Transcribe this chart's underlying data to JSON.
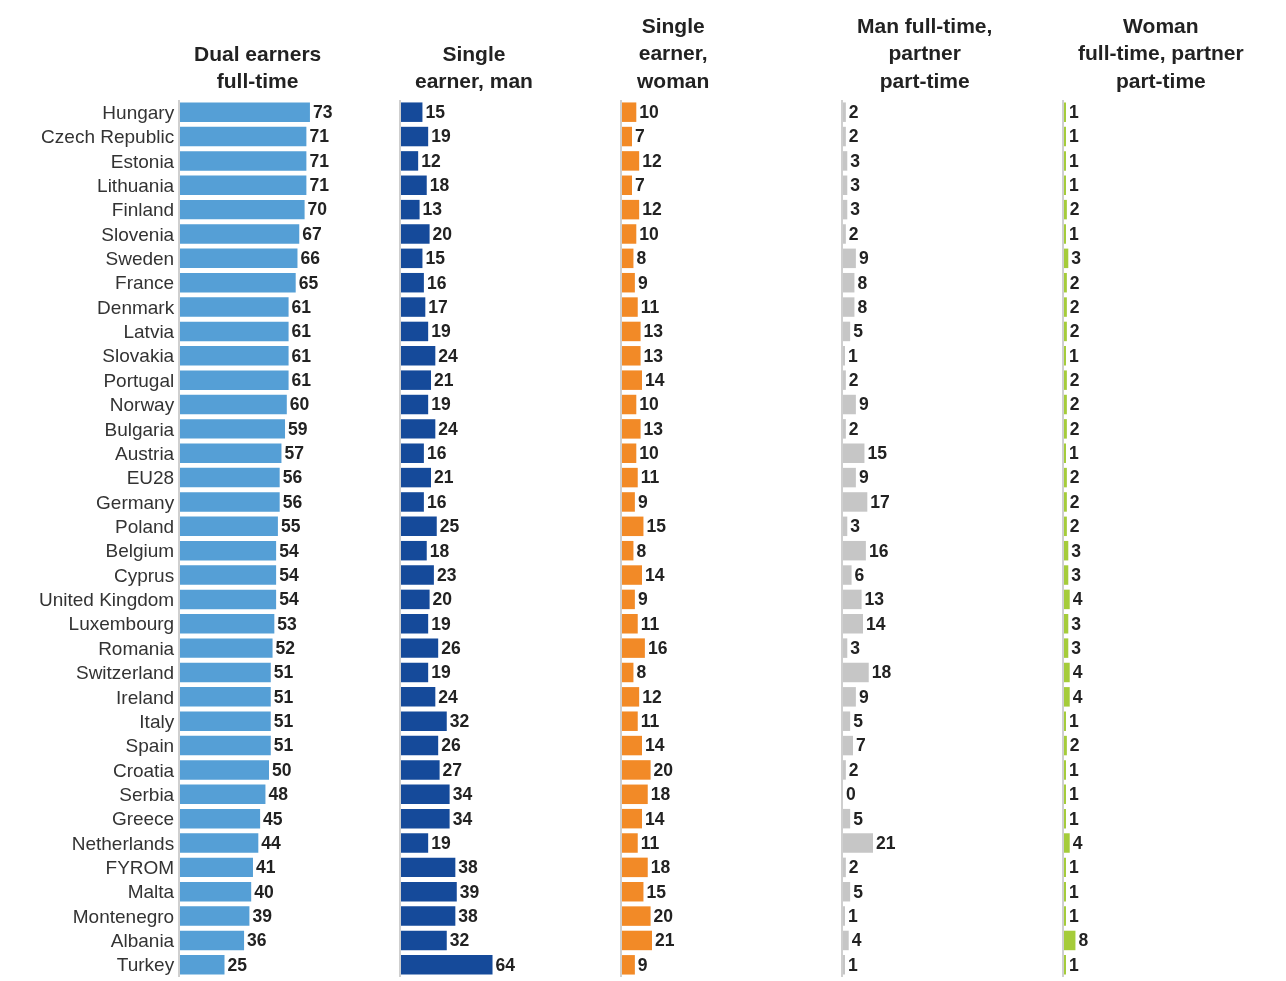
{
  "chart_data": [
    {
      "type": "bar",
      "orientation": "horizontal",
      "title": "Dual earners\nfull-time",
      "categories": [
        "Hungary",
        "Czech Republic",
        "Estonia",
        "Lithuania",
        "Finland",
        "Slovenia",
        "Sweden",
        "France",
        "Denmark",
        "Latvia",
        "Slovakia",
        "Portugal",
        "Norway",
        "Bulgaria",
        "Austria",
        "EU28",
        "Germany",
        "Poland",
        "Belgium",
        "Cyprus",
        "United Kingdom",
        "Luxembourg",
        "Romania",
        "Switzerland",
        "Ireland",
        "Italy",
        "Spain",
        "Croatia",
        "Serbia",
        "Greece",
        "Netherlands",
        "FYROM",
        "Malta",
        "Montenegro",
        "Albania",
        "Turkey"
      ],
      "values": [
        73,
        71,
        71,
        71,
        70,
        67,
        66,
        65,
        61,
        61,
        61,
        61,
        60,
        59,
        57,
        56,
        56,
        55,
        54,
        54,
        54,
        53,
        52,
        51,
        51,
        51,
        51,
        50,
        48,
        45,
        44,
        41,
        40,
        39,
        36,
        25
      ],
      "color": "#559fd6",
      "data_labels": true,
      "tick_labels": "y"
    },
    {
      "type": "bar",
      "orientation": "horizontal",
      "title": "Single\nearner, man",
      "categories": [
        "Hungary",
        "Czech Republic",
        "Estonia",
        "Lithuania",
        "Finland",
        "Slovenia",
        "Sweden",
        "France",
        "Denmark",
        "Latvia",
        "Slovakia",
        "Portugal",
        "Norway",
        "Bulgaria",
        "Austria",
        "EU28",
        "Germany",
        "Poland",
        "Belgium",
        "Cyprus",
        "United Kingdom",
        "Luxembourg",
        "Romania",
        "Switzerland",
        "Ireland",
        "Italy",
        "Spain",
        "Croatia",
        "Serbia",
        "Greece",
        "Netherlands",
        "FYROM",
        "Malta",
        "Montenegro",
        "Albania",
        "Turkey"
      ],
      "values": [
        15,
        19,
        12,
        18,
        13,
        20,
        15,
        16,
        17,
        19,
        24,
        21,
        19,
        24,
        16,
        21,
        16,
        25,
        18,
        23,
        20,
        19,
        26,
        19,
        24,
        32,
        26,
        27,
        34,
        34,
        19,
        38,
        39,
        38,
        32,
        64
      ],
      "color": "#154a9a",
      "data_labels": true,
      "tick_labels": false
    },
    {
      "type": "bar",
      "orientation": "horizontal",
      "title": "Single\nearner,\nwoman",
      "categories": [
        "Hungary",
        "Czech Republic",
        "Estonia",
        "Lithuania",
        "Finland",
        "Slovenia",
        "Sweden",
        "France",
        "Denmark",
        "Latvia",
        "Slovakia",
        "Portugal",
        "Norway",
        "Bulgaria",
        "Austria",
        "EU28",
        "Germany",
        "Poland",
        "Belgium",
        "Cyprus",
        "United Kingdom",
        "Luxembourg",
        "Romania",
        "Switzerland",
        "Ireland",
        "Italy",
        "Spain",
        "Croatia",
        "Serbia",
        "Greece",
        "Netherlands",
        "FYROM",
        "Malta",
        "Montenegro",
        "Albania",
        "Turkey"
      ],
      "values": [
        10,
        7,
        12,
        7,
        12,
        10,
        8,
        9,
        11,
        13,
        13,
        14,
        10,
        13,
        10,
        11,
        9,
        15,
        8,
        14,
        9,
        11,
        16,
        8,
        12,
        11,
        14,
        20,
        18,
        14,
        11,
        18,
        15,
        20,
        21,
        9
      ],
      "color": "#f28a27",
      "data_labels": true,
      "tick_labels": false
    },
    {
      "type": "bar",
      "orientation": "horizontal",
      "title": "Man full-time,\npartner\npart-time",
      "categories": [
        "Hungary",
        "Czech Republic",
        "Estonia",
        "Lithuania",
        "Finland",
        "Slovenia",
        "Sweden",
        "France",
        "Denmark",
        "Latvia",
        "Slovakia",
        "Portugal",
        "Norway",
        "Bulgaria",
        "Austria",
        "EU28",
        "Germany",
        "Poland",
        "Belgium",
        "Cyprus",
        "United Kingdom",
        "Luxembourg",
        "Romania",
        "Switzerland",
        "Ireland",
        "Italy",
        "Spain",
        "Croatia",
        "Serbia",
        "Greece",
        "Netherlands",
        "FYROM",
        "Malta",
        "Montenegro",
        "Albania",
        "Turkey"
      ],
      "values": [
        2,
        2,
        3,
        3,
        3,
        2,
        9,
        8,
        8,
        5,
        1,
        2,
        9,
        2,
        15,
        9,
        17,
        3,
        16,
        6,
        13,
        14,
        3,
        18,
        9,
        5,
        7,
        2,
        0,
        5,
        21,
        2,
        5,
        1,
        4,
        1
      ],
      "color": "#c6c6c6",
      "data_labels": true,
      "tick_labels": false
    },
    {
      "type": "bar",
      "orientation": "horizontal",
      "title": "Woman\nfull-time, partner\npart-time",
      "categories": [
        "Hungary",
        "Czech Republic",
        "Estonia",
        "Lithuania",
        "Finland",
        "Slovenia",
        "Sweden",
        "France",
        "Denmark",
        "Latvia",
        "Slovakia",
        "Portugal",
        "Norway",
        "Bulgaria",
        "Austria",
        "EU28",
        "Germany",
        "Poland",
        "Belgium",
        "Cyprus",
        "United Kingdom",
        "Luxembourg",
        "Romania",
        "Switzerland",
        "Ireland",
        "Italy",
        "Spain",
        "Croatia",
        "Serbia",
        "Greece",
        "Netherlands",
        "FYROM",
        "Malta",
        "Montenegro",
        "Albania",
        "Turkey"
      ],
      "values": [
        1,
        1,
        1,
        1,
        2,
        1,
        3,
        2,
        2,
        2,
        1,
        2,
        2,
        2,
        1,
        2,
        2,
        2,
        3,
        3,
        4,
        3,
        3,
        4,
        4,
        1,
        2,
        1,
        1,
        1,
        4,
        1,
        1,
        1,
        8,
        1
      ],
      "color": "#a5cc3a",
      "data_labels": true,
      "tick_labels": false
    }
  ]
}
